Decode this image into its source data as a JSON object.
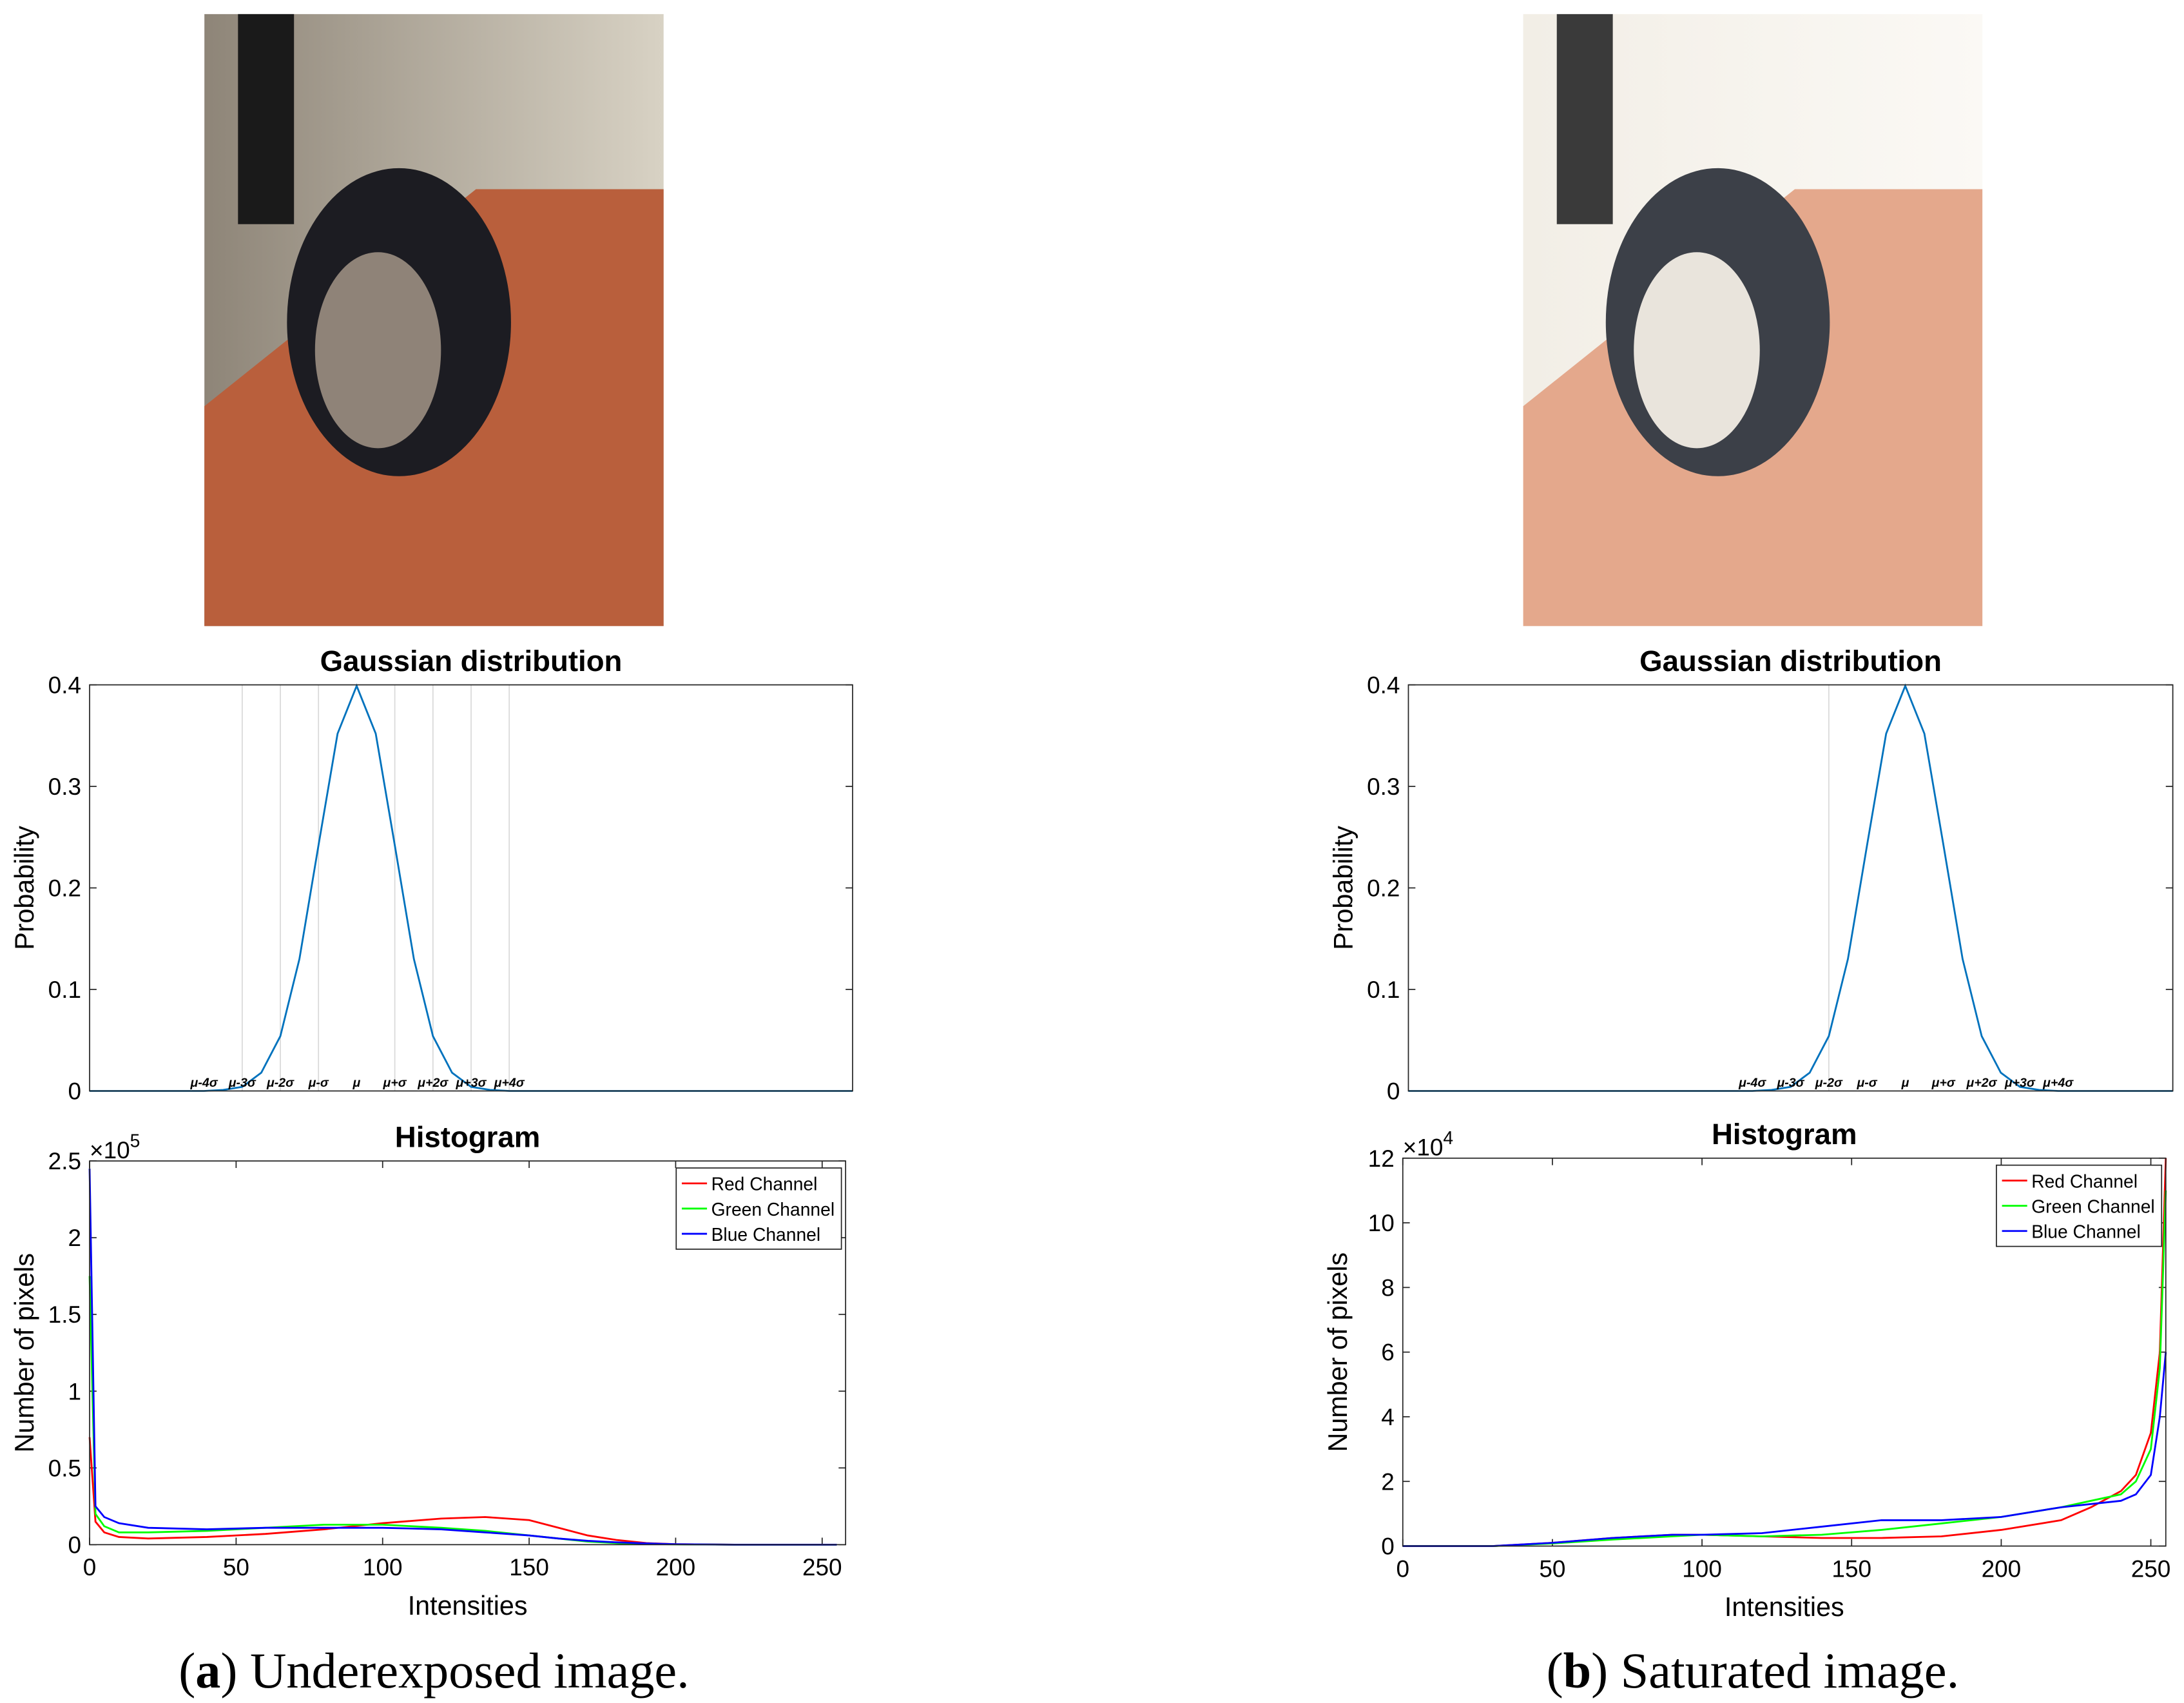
{
  "chart_data": [
    {
      "type": "line",
      "title": "Gaussian distribution",
      "ylabel": "Probability",
      "xlim": [
        -7,
        13
      ],
      "ylim": [
        0,
        0.4
      ],
      "yticks": [
        0,
        0.1,
        0.2,
        0.3,
        0.4
      ],
      "x": [
        -7,
        -4,
        -3.5,
        -3,
        -2.5,
        -2,
        -1.5,
        -1,
        -0.5,
        0,
        0.5,
        1,
        1.5,
        2,
        2.5,
        3,
        3.5,
        4,
        13
      ],
      "series": [
        {
          "color": "#0072bd",
          "values": [
            0,
            0,
            0.001,
            0.004,
            0.018,
            0.054,
            0.13,
            0.242,
            0.352,
            0.399,
            0.352,
            0.242,
            0.13,
            0.054,
            0.018,
            0.004,
            0.001,
            0,
            0
          ]
        }
      ],
      "vlines": [
        -3,
        -2,
        -1,
        1,
        2,
        3,
        4
      ],
      "annotations": [
        {
          "x": -4,
          "text": "μ-4σ"
        },
        {
          "x": -3,
          "text": "μ-3σ"
        },
        {
          "x": -2,
          "text": "μ-2σ"
        },
        {
          "x": -1,
          "text": "μ-σ"
        },
        {
          "x": 0,
          "text": "μ"
        },
        {
          "x": 1,
          "text": "μ+σ"
        },
        {
          "x": 2,
          "text": "μ+2σ"
        },
        {
          "x": 3,
          "text": "μ+3σ"
        },
        {
          "x": 4,
          "text": "μ+4σ"
        }
      ]
    },
    {
      "type": "line",
      "title": "Histogram",
      "xlabel": "Intensities",
      "ylabel": "Number of pixels",
      "xlim": [
        0,
        258
      ],
      "xticks": [
        0,
        50,
        100,
        150,
        200,
        250
      ],
      "ylim": [
        0,
        250000
      ],
      "yticks": [
        0,
        {
          "value": 50000,
          "label": "0.5"
        },
        {
          "value": 100000,
          "label": "1"
        },
        {
          "value": 150000,
          "label": "1.5"
        },
        {
          "value": 200000,
          "label": "2"
        },
        {
          "value": 250000,
          "label": "2.5"
        }
      ],
      "y_multiplier": {
        "base": "×10",
        "exponent": "5"
      },
      "legend": "northeast",
      "x": [
        0,
        2,
        5,
        10,
        20,
        40,
        60,
        80,
        100,
        120,
        135,
        150,
        160,
        170,
        180,
        190,
        200,
        220,
        255
      ],
      "series": [
        {
          "name": "Red Channel",
          "color": "#ff0000",
          "values": [
            70000,
            15000,
            8000,
            5000,
            4000,
            5000,
            7000,
            10000,
            14000,
            17000,
            18000,
            16000,
            11000,
            6000,
            3000,
            1000,
            300,
            0,
            0
          ]
        },
        {
          "name": "Green Channel",
          "color": "#00ff00",
          "values": [
            175000,
            20000,
            12000,
            8000,
            8000,
            9000,
            11000,
            13000,
            13000,
            11000,
            9000,
            6000,
            4000,
            2000,
            1000,
            500,
            200,
            0,
            0
          ]
        },
        {
          "name": "Blue Channel",
          "color": "#0000ff",
          "values": [
            245000,
            25000,
            18000,
            14000,
            11000,
            10000,
            11000,
            11000,
            11000,
            10000,
            8000,
            6000,
            4000,
            2500,
            1500,
            800,
            300,
            0,
            0
          ]
        }
      ]
    },
    {
      "type": "line",
      "title": "Gaussian distribution",
      "ylabel": "Probability",
      "xlim": [
        -13,
        7
      ],
      "ylim": [
        0,
        0.4
      ],
      "yticks": [
        0,
        0.1,
        0.2,
        0.3,
        0.4
      ],
      "x": [
        -13,
        -4,
        -3.5,
        -3,
        -2.5,
        -2,
        -1.5,
        -1,
        -0.5,
        0,
        0.5,
        1,
        1.5,
        2,
        2.5,
        3,
        3.5,
        4,
        7
      ],
      "series": [
        {
          "color": "#0072bd",
          "values": [
            0,
            0,
            0.001,
            0.004,
            0.018,
            0.054,
            0.13,
            0.242,
            0.352,
            0.399,
            0.352,
            0.242,
            0.13,
            0.054,
            0.018,
            0.004,
            0.001,
            0,
            0
          ]
        }
      ],
      "vlines": [
        -2
      ],
      "annotations": [
        {
          "x": -4,
          "text": "μ-4σ"
        },
        {
          "x": -3,
          "text": "μ-3σ"
        },
        {
          "x": -2,
          "text": "μ-2σ"
        },
        {
          "x": -1,
          "text": "μ-σ"
        },
        {
          "x": 0,
          "text": "μ"
        },
        {
          "x": 1,
          "text": "μ+σ"
        },
        {
          "x": 2,
          "text": "μ+2σ"
        },
        {
          "x": 3,
          "text": "μ+3σ"
        },
        {
          "x": 4,
          "text": "μ+4σ"
        }
      ]
    },
    {
      "type": "line",
      "title": "Histogram",
      "xlabel": "Intensities",
      "ylabel": "Number of pixels",
      "xlim": [
        0,
        255
      ],
      "xticks": [
        0,
        50,
        100,
        150,
        200,
        250
      ],
      "ylim": [
        0,
        120000
      ],
      "yticks": [
        0,
        {
          "value": 20000,
          "label": "2"
        },
        {
          "value": 40000,
          "label": "4"
        },
        {
          "value": 60000,
          "label": "6"
        },
        {
          "value": 80000,
          "label": "8"
        },
        {
          "value": 100000,
          "label": "10"
        },
        {
          "value": 120000,
          "label": "12"
        }
      ],
      "y_multiplier": {
        "base": "×10",
        "exponent": "4"
      },
      "legend": "northeast",
      "x": [
        0,
        30,
        50,
        70,
        90,
        100,
        120,
        140,
        160,
        180,
        200,
        220,
        230,
        240,
        245,
        250,
        253,
        255
      ],
      "series": [
        {
          "name": "Red Channel",
          "color": "#ff0000",
          "values": [
            0,
            0,
            1000,
            2500,
            3500,
            3500,
            3000,
            2500,
            2500,
            3000,
            5000,
            8000,
            12000,
            17000,
            22000,
            35000,
            60000,
            120000
          ]
        },
        {
          "name": "Green Channel",
          "color": "#00ff00",
          "values": [
            0,
            0,
            800,
            2000,
            3000,
            3500,
            3000,
            3500,
            5000,
            7000,
            9000,
            12000,
            14000,
            16000,
            20000,
            30000,
            55000,
            110000
          ]
        },
        {
          "name": "Blue Channel",
          "color": "#0000ff",
          "values": [
            0,
            0,
            1000,
            2500,
            3500,
            3500,
            4000,
            6000,
            8000,
            8000,
            9000,
            12000,
            13000,
            14000,
            16000,
            22000,
            40000,
            60000
          ]
        }
      ]
    }
  ],
  "captions": [
    {
      "open": "(",
      "label": "a",
      "close": ")",
      "text": "Underexposed image."
    },
    {
      "open": "(",
      "label": "b",
      "close": ")",
      "text": "Saturated image."
    }
  ]
}
